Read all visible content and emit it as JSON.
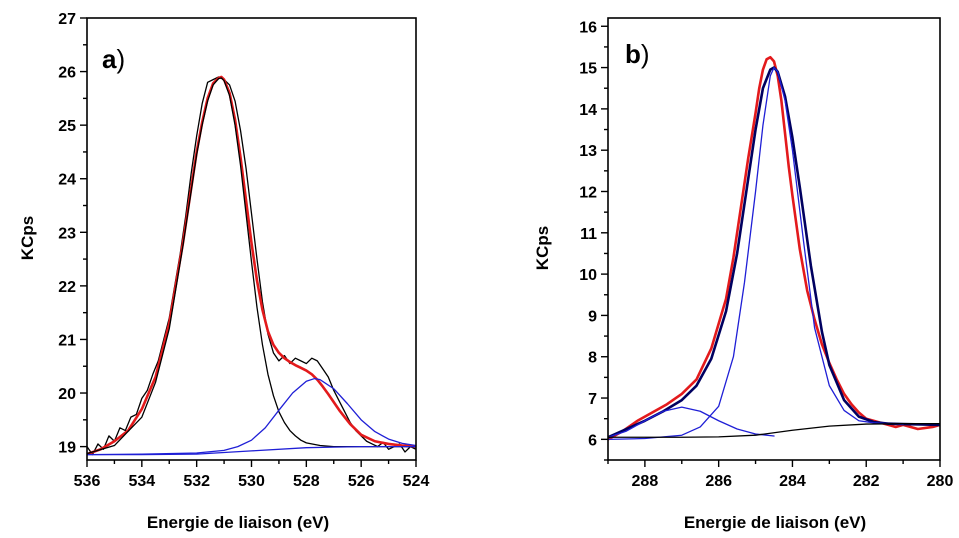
{
  "chart_data": [
    {
      "type": "line",
      "panel_label_letter": "a",
      "panel_label_suffix": ")",
      "xlabel": "Energie de liaison (eV)",
      "ylabel": "KCps",
      "xlim": [
        536,
        524
      ],
      "ylim": [
        18.75,
        27
      ],
      "x_ticks": [
        536,
        534,
        532,
        530,
        528,
        526,
        524
      ],
      "y_ticks": [
        19,
        20,
        21,
        22,
        23,
        24,
        25,
        26,
        27
      ],
      "grid": false,
      "series": [
        {
          "role": "experimental",
          "color": "#000000",
          "x": [
            536,
            535.8,
            535.6,
            535.4,
            535.2,
            535,
            534.8,
            534.6,
            534.4,
            534.2,
            534,
            533.8,
            533.6,
            533.4,
            533.2,
            533,
            532.8,
            532.6,
            532.4,
            532.2,
            532,
            531.8,
            531.6,
            531.4,
            531.2,
            531,
            530.8,
            530.6,
            530.4,
            530.2,
            530,
            529.8,
            529.6,
            529.4,
            529.2,
            529,
            528.8,
            528.6,
            528.4,
            528.2,
            528,
            527.8,
            527.6,
            527.4,
            527.2,
            527,
            526.8,
            526.6,
            526.4,
            526.2,
            526,
            525.8,
            525.6,
            525.4,
            525.2,
            525,
            524.8,
            524.6,
            524.4,
            524.2,
            524
          ],
          "y": [
            19.0,
            18.85,
            19.05,
            18.95,
            19.2,
            19.1,
            19.35,
            19.3,
            19.55,
            19.6,
            19.9,
            20.05,
            20.35,
            20.6,
            21.0,
            21.4,
            22.0,
            22.6,
            23.3,
            24.1,
            24.8,
            25.4,
            25.8,
            25.85,
            25.9,
            25.85,
            25.75,
            25.45,
            24.9,
            24.2,
            23.35,
            22.5,
            21.7,
            21.1,
            20.75,
            20.6,
            20.7,
            20.55,
            20.65,
            20.6,
            20.55,
            20.65,
            20.6,
            20.45,
            20.3,
            20.05,
            19.85,
            19.65,
            19.45,
            19.3,
            19.2,
            19.1,
            19.05,
            19.0,
            19.08,
            18.95,
            19.0,
            19.05,
            18.9,
            19.0,
            18.95
          ]
        },
        {
          "role": "fit-envelope",
          "color": "#e31a1c",
          "x": [
            536,
            535.5,
            535,
            534.5,
            534,
            533.5,
            533,
            532.5,
            532,
            531.8,
            531.6,
            531.4,
            531.2,
            531.1,
            531,
            530.8,
            530.6,
            530.4,
            530.2,
            530,
            529.8,
            529.6,
            529.4,
            529.2,
            529,
            528.8,
            528.6,
            528.4,
            528.2,
            528,
            527.8,
            527.6,
            527.4,
            527.2,
            527,
            526.8,
            526.6,
            526.4,
            526.2,
            526,
            525.5,
            525,
            524.5,
            524
          ],
          "y": [
            18.86,
            18.95,
            19.1,
            19.3,
            19.7,
            20.3,
            21.3,
            22.8,
            24.5,
            25.05,
            25.5,
            25.78,
            25.88,
            25.9,
            25.85,
            25.6,
            25.1,
            24.4,
            23.6,
            22.8,
            22.1,
            21.55,
            21.15,
            20.9,
            20.75,
            20.65,
            20.58,
            20.52,
            20.47,
            20.42,
            20.35,
            20.25,
            20.12,
            19.98,
            19.83,
            19.68,
            19.55,
            19.42,
            19.32,
            19.22,
            19.1,
            19.05,
            19.02,
            19.0
          ]
        },
        {
          "role": "component-1",
          "color": "#000000",
          "x": [
            536,
            535,
            534,
            533.5,
            533,
            532.5,
            532,
            531.8,
            531.6,
            531.4,
            531.2,
            531.1,
            531,
            530.8,
            530.6,
            530.4,
            530.2,
            530,
            529.8,
            529.6,
            529.4,
            529.2,
            529,
            528.8,
            528.6,
            528.4,
            528.2,
            528,
            527.5,
            527,
            526.5,
            526,
            525,
            524
          ],
          "y": [
            18.87,
            19.02,
            19.55,
            20.2,
            21.2,
            22.75,
            24.45,
            25.0,
            25.45,
            25.75,
            25.87,
            25.88,
            25.83,
            25.55,
            25.0,
            24.25,
            23.35,
            22.45,
            21.6,
            20.9,
            20.35,
            19.95,
            19.65,
            19.45,
            19.3,
            19.2,
            19.12,
            19.07,
            19.02,
            19.0,
            19.0,
            19.0,
            19.0,
            19.0
          ]
        },
        {
          "role": "component-2",
          "color": "#1f1fd6",
          "x": [
            536,
            534,
            532,
            531,
            530.5,
            530,
            529.5,
            529,
            528.5,
            528,
            527.7,
            527.5,
            527,
            526.5,
            526,
            525.5,
            525,
            524.5,
            524
          ],
          "y": [
            18.85,
            18.86,
            18.88,
            18.93,
            19.0,
            19.12,
            19.35,
            19.68,
            20.0,
            20.22,
            20.27,
            20.25,
            20.08,
            19.8,
            19.5,
            19.28,
            19.14,
            19.06,
            19.02
          ]
        },
        {
          "role": "background",
          "color": "#1f1fd6",
          "x": [
            536,
            534,
            532,
            530,
            528,
            527,
            526,
            524
          ],
          "y": [
            18.85,
            18.85,
            18.86,
            18.92,
            18.98,
            18.99,
            19.0,
            19.0
          ]
        }
      ]
    },
    {
      "type": "line",
      "panel_label_letter": "b",
      "panel_label_suffix": ")",
      "xlabel": "Energie de liaison (eV)",
      "ylabel": "KCps",
      "xlim": [
        289,
        280
      ],
      "ylim": [
        5.5,
        16.2
      ],
      "x_ticks": [
        288,
        286,
        284,
        282,
        280
      ],
      "y_ticks": [
        6,
        7,
        8,
        9,
        10,
        11,
        12,
        13,
        14,
        15,
        16
      ],
      "grid": false,
      "series": [
        {
          "role": "experimental",
          "color": "#e31a1c",
          "x": [
            289,
            288.6,
            288.2,
            287.8,
            287.4,
            287,
            286.6,
            286.2,
            285.8,
            285.6,
            285.4,
            285.2,
            285,
            284.9,
            284.8,
            284.7,
            284.6,
            284.5,
            284.4,
            284.3,
            284.2,
            284.1,
            284,
            283.8,
            283.6,
            283.4,
            283.2,
            283,
            282.8,
            282.6,
            282.4,
            282.2,
            282,
            281.8,
            281.6,
            281.4,
            281.2,
            281,
            280.6,
            280.2,
            280
          ],
          "y": [
            6.0,
            6.2,
            6.45,
            6.65,
            6.85,
            7.1,
            7.45,
            8.2,
            9.4,
            10.4,
            11.6,
            12.8,
            13.9,
            14.5,
            14.95,
            15.2,
            15.25,
            15.15,
            14.8,
            14.2,
            13.4,
            12.6,
            11.9,
            10.6,
            9.6,
            8.9,
            8.3,
            7.85,
            7.45,
            7.1,
            6.85,
            6.65,
            6.5,
            6.45,
            6.4,
            6.35,
            6.3,
            6.35,
            6.25,
            6.3,
            6.35
          ]
        },
        {
          "role": "fit-envelope",
          "color": "#000060",
          "x": [
            289,
            288.5,
            288,
            287.5,
            287,
            286.6,
            286.2,
            285.8,
            285.5,
            285.2,
            285,
            284.8,
            284.6,
            284.5,
            284.4,
            284.2,
            284,
            283.8,
            283.5,
            283.2,
            283,
            282.6,
            282.2,
            281.8,
            281.4,
            281,
            280.5,
            280
          ],
          "y": [
            6.05,
            6.25,
            6.45,
            6.68,
            6.95,
            7.3,
            7.95,
            9.1,
            10.5,
            12.3,
            13.5,
            14.5,
            14.95,
            15.0,
            14.9,
            14.3,
            13.3,
            12.1,
            10.2,
            8.6,
            7.8,
            6.95,
            6.55,
            6.42,
            6.38,
            6.37,
            6.36,
            6.35
          ]
        },
        {
          "role": "component-main",
          "color": "#1f1fd6",
          "x": [
            289,
            288,
            287,
            286.5,
            286,
            285.6,
            285.3,
            285,
            284.8,
            284.6,
            284.5,
            284.4,
            284.2,
            284,
            283.7,
            283.4,
            283,
            282.6,
            282.2,
            281.8,
            281.4,
            281
          ],
          "y": [
            6.0,
            6.02,
            6.1,
            6.3,
            6.8,
            8.0,
            9.8,
            12.0,
            13.6,
            14.8,
            15.0,
            14.9,
            14.2,
            13.0,
            10.8,
            8.7,
            7.3,
            6.7,
            6.45,
            6.4,
            6.38,
            6.37
          ]
        },
        {
          "role": "component-minor",
          "color": "#1f1fd6",
          "x": [
            289,
            288.5,
            288,
            287.5,
            287,
            286.5,
            286,
            285.5,
            285,
            284.5
          ],
          "y": [
            6.05,
            6.2,
            6.45,
            6.68,
            6.78,
            6.68,
            6.45,
            6.25,
            6.13,
            6.08
          ]
        },
        {
          "role": "background",
          "color": "#000000",
          "x": [
            289,
            287,
            286,
            285,
            284,
            283,
            282,
            281,
            280
          ],
          "y": [
            6.05,
            6.05,
            6.06,
            6.1,
            6.22,
            6.32,
            6.37,
            6.38,
            6.38
          ]
        }
      ]
    }
  ]
}
